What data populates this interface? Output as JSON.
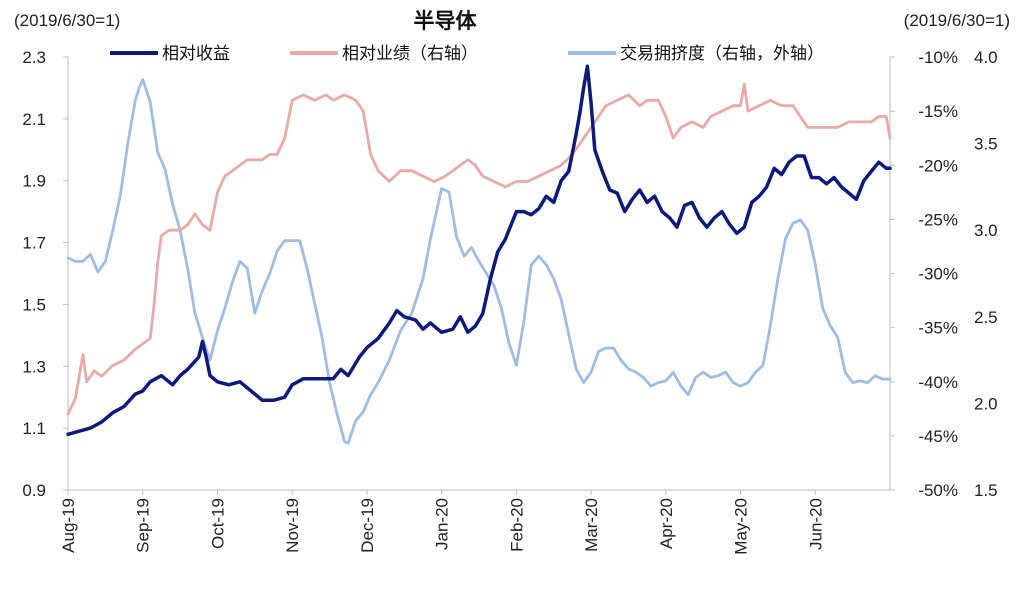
{
  "chart_data": {
    "type": "line",
    "title": "半导体",
    "left_note": "(2019/6/30=1)",
    "right_note": "(2019/6/30=1)",
    "x_ticks": [
      "Aug-19",
      "Sep-19",
      "Oct-19",
      "Nov-19",
      "Dec-19",
      "Jan-20",
      "Feb-20",
      "Mar-20",
      "Apr-20",
      "May-20",
      "Jun-20"
    ],
    "y_left": {
      "min": 0.9,
      "max": 2.3,
      "ticks": [
        "0.9",
        "1.1",
        "1.3",
        "1.5",
        "1.7",
        "1.9",
        "2.1",
        "2.3"
      ]
    },
    "y_right": {
      "min": -50,
      "max": -10,
      "ticks": [
        "-50%",
        "-45%",
        "-40%",
        "-35%",
        "-30%",
        "-25%",
        "-20%",
        "-15%",
        "-10%"
      ]
    },
    "y_outer": {
      "min": 1.5,
      "max": 4.0,
      "ticks": [
        "1.5",
        "2.0",
        "2.5",
        "3.0",
        "3.5",
        "4.0"
      ]
    },
    "grid": false,
    "legend_position": "top",
    "series": [
      {
        "name": "相对收益",
        "axis": "left",
        "color": "#0d1a7a",
        "points": [
          [
            0.0,
            1.08
          ],
          [
            0.15,
            1.09
          ],
          [
            0.3,
            1.1
          ],
          [
            0.45,
            1.12
          ],
          [
            0.6,
            1.15
          ],
          [
            0.75,
            1.17
          ],
          [
            0.9,
            1.21
          ],
          [
            1.0,
            1.22
          ],
          [
            1.1,
            1.25
          ],
          [
            1.25,
            1.27
          ],
          [
            1.4,
            1.24
          ],
          [
            1.5,
            1.27
          ],
          [
            1.6,
            1.29
          ],
          [
            1.75,
            1.33
          ],
          [
            1.8,
            1.38
          ],
          [
            1.85,
            1.33
          ],
          [
            1.9,
            1.27
          ],
          [
            2.0,
            1.25
          ],
          [
            2.15,
            1.24
          ],
          [
            2.3,
            1.25
          ],
          [
            2.45,
            1.22
          ],
          [
            2.6,
            1.19
          ],
          [
            2.75,
            1.19
          ],
          [
            2.9,
            1.2
          ],
          [
            3.0,
            1.24
          ],
          [
            3.15,
            1.26
          ],
          [
            3.3,
            1.26
          ],
          [
            3.45,
            1.26
          ],
          [
            3.55,
            1.26
          ],
          [
            3.65,
            1.29
          ],
          [
            3.75,
            1.27
          ],
          [
            3.9,
            1.33
          ],
          [
            4.0,
            1.36
          ],
          [
            4.15,
            1.39
          ],
          [
            4.3,
            1.44
          ],
          [
            4.4,
            1.48
          ],
          [
            4.5,
            1.46
          ],
          [
            4.65,
            1.45
          ],
          [
            4.75,
            1.42
          ],
          [
            4.85,
            1.44
          ],
          [
            5.0,
            1.41
          ],
          [
            5.15,
            1.42
          ],
          [
            5.25,
            1.46
          ],
          [
            5.35,
            1.41
          ],
          [
            5.45,
            1.43
          ],
          [
            5.55,
            1.47
          ],
          [
            5.65,
            1.58
          ],
          [
            5.75,
            1.67
          ],
          [
            5.85,
            1.71
          ],
          [
            6.0,
            1.8
          ],
          [
            6.1,
            1.8
          ],
          [
            6.2,
            1.79
          ],
          [
            6.3,
            1.81
          ],
          [
            6.4,
            1.85
          ],
          [
            6.5,
            1.83
          ],
          [
            6.6,
            1.9
          ],
          [
            6.7,
            1.93
          ],
          [
            6.8,
            2.05
          ],
          [
            6.85,
            2.12
          ],
          [
            6.9,
            2.2
          ],
          [
            6.95,
            2.27
          ],
          [
            7.0,
            2.15
          ],
          [
            7.05,
            2.0
          ],
          [
            7.15,
            1.93
          ],
          [
            7.25,
            1.87
          ],
          [
            7.35,
            1.86
          ],
          [
            7.45,
            1.8
          ],
          [
            7.55,
            1.84
          ],
          [
            7.65,
            1.87
          ],
          [
            7.75,
            1.83
          ],
          [
            7.85,
            1.85
          ],
          [
            7.95,
            1.8
          ],
          [
            8.05,
            1.78
          ],
          [
            8.15,
            1.75
          ],
          [
            8.25,
            1.82
          ],
          [
            8.35,
            1.83
          ],
          [
            8.45,
            1.78
          ],
          [
            8.55,
            1.75
          ],
          [
            8.65,
            1.78
          ],
          [
            8.75,
            1.8
          ],
          [
            8.85,
            1.76
          ],
          [
            8.95,
            1.73
          ],
          [
            9.05,
            1.75
          ],
          [
            9.15,
            1.83
          ],
          [
            9.25,
            1.85
          ],
          [
            9.35,
            1.88
          ],
          [
            9.45,
            1.94
          ],
          [
            9.55,
            1.92
          ],
          [
            9.65,
            1.96
          ],
          [
            9.75,
            1.98
          ],
          [
            9.85,
            1.98
          ],
          [
            9.95,
            1.91
          ],
          [
            10.05,
            1.91
          ],
          [
            10.15,
            1.89
          ],
          [
            10.25,
            1.91
          ],
          [
            10.35,
            1.88
          ],
          [
            10.45,
            1.86
          ],
          [
            10.55,
            1.84
          ],
          [
            10.65,
            1.9
          ],
          [
            10.75,
            1.93
          ],
          [
            10.85,
            1.96
          ],
          [
            10.95,
            1.94
          ],
          [
            11.0,
            1.94
          ]
        ]
      },
      {
        "name": "相对业绩（右轴）",
        "axis": "right",
        "color": "#e8aaa6",
        "points": [
          [
            0.0,
            -43.0
          ],
          [
            0.1,
            -41.5
          ],
          [
            0.2,
            -37.5
          ],
          [
            0.25,
            -40.0
          ],
          [
            0.35,
            -39.0
          ],
          [
            0.45,
            -39.5
          ],
          [
            0.6,
            -38.5
          ],
          [
            0.75,
            -38.0
          ],
          [
            0.9,
            -37.0
          ],
          [
            1.0,
            -36.5
          ],
          [
            1.1,
            -36.0
          ],
          [
            1.15,
            -33.0
          ],
          [
            1.2,
            -29.0
          ],
          [
            1.25,
            -26.5
          ],
          [
            1.35,
            -26.0
          ],
          [
            1.5,
            -26.0
          ],
          [
            1.6,
            -25.5
          ],
          [
            1.7,
            -24.5
          ],
          [
            1.8,
            -25.5
          ],
          [
            1.9,
            -26.0
          ],
          [
            2.0,
            -22.5
          ],
          [
            2.1,
            -21.0
          ],
          [
            2.2,
            -20.5
          ],
          [
            2.3,
            -20.0
          ],
          [
            2.4,
            -19.5
          ],
          [
            2.5,
            -19.5
          ],
          [
            2.6,
            -19.5
          ],
          [
            2.7,
            -19.0
          ],
          [
            2.8,
            -19.0
          ],
          [
            2.9,
            -17.5
          ],
          [
            3.0,
            -14.0
          ],
          [
            3.15,
            -13.5
          ],
          [
            3.3,
            -14.0
          ],
          [
            3.45,
            -13.5
          ],
          [
            3.55,
            -14.0
          ],
          [
            3.7,
            -13.5
          ],
          [
            3.85,
            -14.0
          ],
          [
            3.95,
            -15.0
          ],
          [
            4.05,
            -19.0
          ],
          [
            4.15,
            -20.5
          ],
          [
            4.3,
            -21.5
          ],
          [
            4.45,
            -20.5
          ],
          [
            4.6,
            -20.5
          ],
          [
            4.75,
            -21.0
          ],
          [
            4.9,
            -21.5
          ],
          [
            5.05,
            -21.0
          ],
          [
            5.15,
            -20.5
          ],
          [
            5.25,
            -20.0
          ],
          [
            5.35,
            -19.5
          ],
          [
            5.45,
            -20.0
          ],
          [
            5.55,
            -21.0
          ],
          [
            5.7,
            -21.5
          ],
          [
            5.85,
            -22.0
          ],
          [
            6.0,
            -21.5
          ],
          [
            6.15,
            -21.5
          ],
          [
            6.3,
            -21.0
          ],
          [
            6.45,
            -20.5
          ],
          [
            6.6,
            -20.0
          ],
          [
            6.75,
            -19.0
          ],
          [
            6.9,
            -17.5
          ],
          [
            7.0,
            -16.5
          ],
          [
            7.1,
            -15.5
          ],
          [
            7.2,
            -14.5
          ],
          [
            7.35,
            -14.0
          ],
          [
            7.5,
            -13.5
          ],
          [
            7.65,
            -14.5
          ],
          [
            7.75,
            -14.0
          ],
          [
            7.9,
            -14.0
          ],
          [
            8.0,
            -15.5
          ],
          [
            8.1,
            -17.5
          ],
          [
            8.2,
            -16.5
          ],
          [
            8.35,
            -16.0
          ],
          [
            8.5,
            -16.5
          ],
          [
            8.6,
            -15.5
          ],
          [
            8.75,
            -15.0
          ],
          [
            8.9,
            -14.5
          ],
          [
            9.0,
            -14.5
          ],
          [
            9.05,
            -12.5
          ],
          [
            9.1,
            -15.0
          ],
          [
            9.25,
            -14.5
          ],
          [
            9.4,
            -14.0
          ],
          [
            9.55,
            -14.5
          ],
          [
            9.7,
            -14.5
          ],
          [
            9.8,
            -15.5
          ],
          [
            9.9,
            -16.5
          ],
          [
            10.0,
            -16.5
          ],
          [
            10.15,
            -16.5
          ],
          [
            10.3,
            -16.5
          ],
          [
            10.45,
            -16.0
          ],
          [
            10.6,
            -16.0
          ],
          [
            10.75,
            -16.0
          ],
          [
            10.85,
            -15.5
          ],
          [
            10.95,
            -15.5
          ],
          [
            11.0,
            -17.5
          ]
        ]
      },
      {
        "name": "交易拥挤度（右轴，外轴）",
        "axis": "outer",
        "color": "#9fbde3",
        "points": [
          [
            0.0,
            2.84
          ],
          [
            0.1,
            2.82
          ],
          [
            0.2,
            2.82
          ],
          [
            0.3,
            2.86
          ],
          [
            0.4,
            2.76
          ],
          [
            0.5,
            2.82
          ],
          [
            0.6,
            3.0
          ],
          [
            0.7,
            3.2
          ],
          [
            0.8,
            3.5
          ],
          [
            0.9,
            3.75
          ],
          [
            0.95,
            3.82
          ],
          [
            1.0,
            3.87
          ],
          [
            1.1,
            3.74
          ],
          [
            1.2,
            3.45
          ],
          [
            1.3,
            3.35
          ],
          [
            1.4,
            3.15
          ],
          [
            1.5,
            3.0
          ],
          [
            1.6,
            2.78
          ],
          [
            1.7,
            2.52
          ],
          [
            1.8,
            2.38
          ],
          [
            1.9,
            2.25
          ],
          [
            2.0,
            2.42
          ],
          [
            2.1,
            2.55
          ],
          [
            2.2,
            2.7
          ],
          [
            2.3,
            2.82
          ],
          [
            2.4,
            2.78
          ],
          [
            2.5,
            2.52
          ],
          [
            2.6,
            2.65
          ],
          [
            2.7,
            2.75
          ],
          [
            2.8,
            2.88
          ],
          [
            2.9,
            2.94
          ],
          [
            3.0,
            2.94
          ],
          [
            3.1,
            2.94
          ],
          [
            3.2,
            2.78
          ],
          [
            3.3,
            2.58
          ],
          [
            3.4,
            2.38
          ],
          [
            3.5,
            2.12
          ],
          [
            3.6,
            1.94
          ],
          [
            3.7,
            1.78
          ],
          [
            3.75,
            1.77
          ],
          [
            3.85,
            1.9
          ],
          [
            3.95,
            1.95
          ],
          [
            4.05,
            2.05
          ],
          [
            4.15,
            2.12
          ],
          [
            4.3,
            2.25
          ],
          [
            4.45,
            2.42
          ],
          [
            4.6,
            2.52
          ],
          [
            4.75,
            2.72
          ],
          [
            4.85,
            2.95
          ],
          [
            5.0,
            3.24
          ],
          [
            5.1,
            3.22
          ],
          [
            5.2,
            2.96
          ],
          [
            5.3,
            2.85
          ],
          [
            5.4,
            2.9
          ],
          [
            5.5,
            2.82
          ],
          [
            5.6,
            2.75
          ],
          [
            5.7,
            2.68
          ],
          [
            5.8,
            2.55
          ],
          [
            5.9,
            2.35
          ],
          [
            6.0,
            2.22
          ],
          [
            6.1,
            2.47
          ],
          [
            6.2,
            2.8
          ],
          [
            6.3,
            2.85
          ],
          [
            6.4,
            2.8
          ],
          [
            6.5,
            2.72
          ],
          [
            6.6,
            2.6
          ],
          [
            6.7,
            2.4
          ],
          [
            6.8,
            2.2
          ],
          [
            6.9,
            2.12
          ],
          [
            7.0,
            2.18
          ],
          [
            7.1,
            2.3
          ],
          [
            7.2,
            2.32
          ],
          [
            7.3,
            2.32
          ],
          [
            7.4,
            2.25
          ],
          [
            7.5,
            2.2
          ],
          [
            7.6,
            2.18
          ],
          [
            7.7,
            2.15
          ],
          [
            7.8,
            2.1
          ],
          [
            7.9,
            2.12
          ],
          [
            8.0,
            2.13
          ],
          [
            8.1,
            2.18
          ],
          [
            8.2,
            2.1
          ],
          [
            8.3,
            2.05
          ],
          [
            8.4,
            2.15
          ],
          [
            8.5,
            2.18
          ],
          [
            8.6,
            2.15
          ],
          [
            8.7,
            2.16
          ],
          [
            8.8,
            2.18
          ],
          [
            8.9,
            2.12
          ],
          [
            9.0,
            2.1
          ],
          [
            9.1,
            2.12
          ],
          [
            9.2,
            2.18
          ],
          [
            9.3,
            2.22
          ],
          [
            9.4,
            2.45
          ],
          [
            9.5,
            2.72
          ],
          [
            9.6,
            2.95
          ],
          [
            9.7,
            3.04
          ],
          [
            9.8,
            3.06
          ],
          [
            9.9,
            3.0
          ],
          [
            10.0,
            2.8
          ],
          [
            10.1,
            2.55
          ],
          [
            10.2,
            2.45
          ],
          [
            10.3,
            2.38
          ],
          [
            10.4,
            2.18
          ],
          [
            10.5,
            2.12
          ],
          [
            10.6,
            2.13
          ],
          [
            10.7,
            2.12
          ],
          [
            10.8,
            2.16
          ],
          [
            10.9,
            2.14
          ],
          [
            11.0,
            2.14
          ]
        ]
      }
    ]
  }
}
